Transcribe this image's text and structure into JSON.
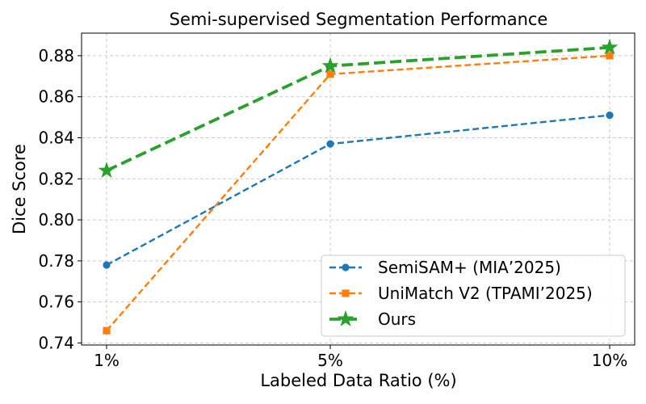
{
  "chart_data": {
    "type": "line",
    "title": "Semi-supervised Segmentation Performance",
    "xlabel": "Labeled Data Ratio (%)",
    "ylabel": "Dice Score",
    "categories": [
      "1%",
      "5%",
      "10%"
    ],
    "ylim": [
      0.739,
      0.891
    ],
    "yticks": [
      0.74,
      0.76,
      0.78,
      0.8,
      0.82,
      0.84,
      0.86,
      0.88
    ],
    "ytick_labels": [
      "0.74",
      "0.76",
      "0.78",
      "0.80",
      "0.82",
      "0.84",
      "0.86",
      "0.88"
    ],
    "grid": true,
    "legend_position": "lower-right",
    "series": [
      {
        "name": "SemiSAM+ (MIA’2025)",
        "values": [
          0.778,
          0.837,
          0.851
        ],
        "color": "#1f77b4",
        "marker": "circle",
        "style": "dashed"
      },
      {
        "name": "UniMatch V2 (TPAMI’2025)",
        "values": [
          0.746,
          0.871,
          0.88
        ],
        "color": "#ff7f0e",
        "marker": "square",
        "style": "dashed"
      },
      {
        "name": "Ours",
        "values": [
          0.824,
          0.875,
          0.884
        ],
        "color": "#2ca02c",
        "marker": "star",
        "style": "dashed"
      }
    ]
  }
}
